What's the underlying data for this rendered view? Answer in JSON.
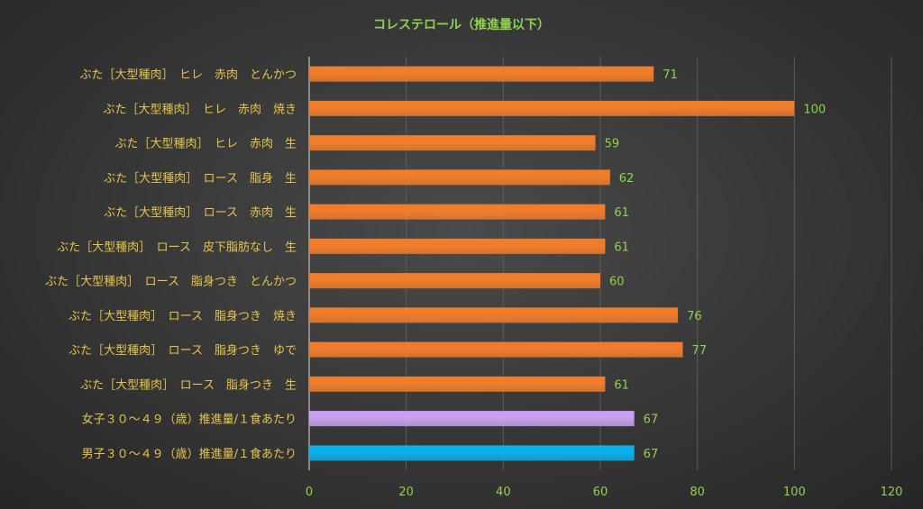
{
  "chart_data": {
    "type": "bar",
    "orientation": "horizontal",
    "title": "コレステロール（推進量以下）",
    "xlim": [
      0,
      120
    ],
    "x_ticks": [
      0,
      20,
      40,
      60,
      80,
      100,
      120
    ],
    "grid": "vertical",
    "categories": [
      "ぶた［大型種肉］　ヒレ　赤肉　とんかつ",
      "ぶた［大型種肉］　ヒレ　赤肉　焼き",
      "ぶた［大型種肉］　ヒレ　赤肉　生",
      "ぶた［大型種肉］　ロース　脂身　生",
      "ぶた［大型種肉］　ロース　赤肉　生",
      "ぶた［大型種肉］　ロース　皮下脂肪なし　生",
      "ぶた［大型種肉］　ロース　脂身つき　とんかつ",
      "ぶた［大型種肉］　ロース　脂身つき　焼き",
      "ぶた［大型種肉］　ロース　脂身つき　ゆで",
      "ぶた［大型種肉］　ロース　脂身つき　生",
      "女子３０～４９（歳）推進量/１食あたり",
      "男子３０～４９（歳）推進量/１食あたり"
    ],
    "values": [
      71,
      100,
      59,
      62,
      61,
      61,
      60,
      76,
      77,
      61,
      67,
      67
    ],
    "colors": [
      "#f07d2c",
      "#f07d2c",
      "#f07d2c",
      "#f07d2c",
      "#f07d2c",
      "#f07d2c",
      "#f07d2c",
      "#f07d2c",
      "#f07d2c",
      "#f07d2c",
      "#c9a0f0",
      "#0ab0ea"
    ]
  }
}
